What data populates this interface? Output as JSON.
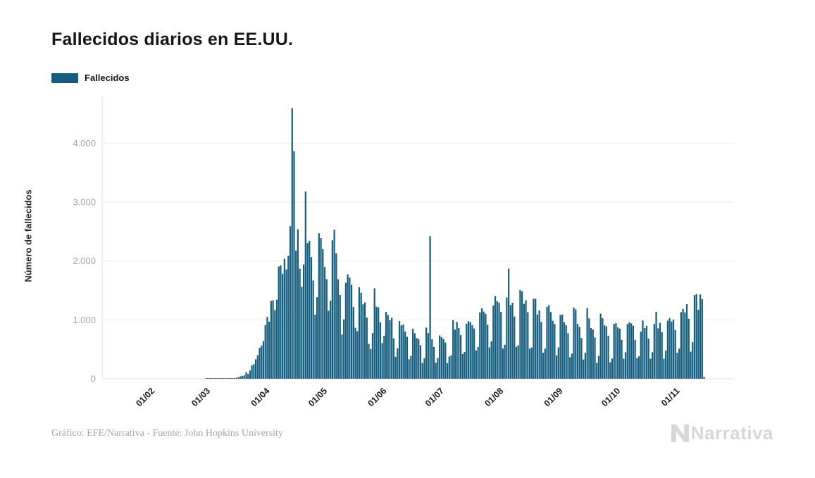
{
  "header": {
    "title": "Fallecidos diarios en EE.UU."
  },
  "legend": {
    "items": [
      {
        "label": "Fallecidos",
        "color": "#135e7e"
      }
    ]
  },
  "footer": {
    "credit": "Gráfico: EFE/Narrativa - Fuente: John Hopkins University"
  },
  "branding": {
    "logo_text": "Narrativa"
  },
  "colors": {
    "bar": "#135e7e",
    "grid": "#ededed",
    "axis_line": "#e2e2e2",
    "y_tick_text": "#a6a6a6",
    "x_tick_text": "#1a1a1a"
  },
  "chart_data": {
    "type": "bar",
    "title": "Fallecidos diarios en EE.UU.",
    "series_name": "Fallecidos",
    "xlabel": "",
    "ylabel": "Número de fallecidos",
    "x_unit": "day",
    "x_start_date": "22/01/2020",
    "x_tick_labels": [
      "01/02",
      "01/03",
      "01/04",
      "01/05",
      "01/06",
      "01/07",
      "01/08",
      "01/09",
      "01/10",
      "01/11"
    ],
    "x_tick_day_offsets": [
      10,
      39,
      70,
      100,
      131,
      161,
      192,
      223,
      253,
      284
    ],
    "y_ticks": [
      0,
      1000,
      2000,
      3000,
      4000
    ],
    "y_tick_labels": [
      "0",
      "1.000",
      "2.000",
      "3.000",
      "4.000"
    ],
    "ylim": [
      0,
      4780
    ],
    "grid": true,
    "legend_position": "top-left",
    "bar_color": "#135e7e",
    "values": [
      0,
      0,
      0,
      0,
      0,
      0,
      0,
      0,
      0,
      0,
      0,
      0,
      0,
      0,
      0,
      0,
      0,
      0,
      0,
      0,
      0,
      0,
      0,
      0,
      0,
      0,
      0,
      0,
      0,
      0,
      0,
      0,
      0,
      0,
      0,
      0,
      0,
      0,
      1,
      1,
      4,
      3,
      3,
      5,
      2,
      5,
      4,
      4,
      6,
      4,
      7,
      8,
      11,
      11,
      18,
      23,
      41,
      49,
      57,
      111,
      80,
      140,
      225,
      247,
      330,
      400,
      525,
      560,
      640,
      912,
      1049,
      968,
      1321,
      1331,
      1165,
      1342,
      1906,
      1922,
      1783,
      2035,
      1857,
      2087,
      2589,
      4591,
      3863,
      2174,
      2538,
      1867,
      1561,
      1940,
      3179,
      2303,
      2341,
      2065,
      1668,
      1087,
      1384,
      2470,
      2390,
      2201,
      1897,
      1691,
      1154,
      1324,
      2350,
      2528,
      2129,
      1687,
      1422,
      750,
      1008,
      1630,
      1772,
      1715,
      1595,
      1218,
      865,
      808,
      1552,
      1461,
      1263,
      1294,
      1036,
      592,
      505,
      774,
      1535,
      1223,
      1212,
      960,
      605,
      730,
      1134,
      1083,
      995,
      1036,
      685,
      373,
      517,
      978,
      906,
      919,
      802,
      711,
      330,
      389,
      849,
      773,
      690,
      673,
      570,
      267,
      348,
      868,
      775,
      2420,
      670,
      538,
      271,
      353,
      735,
      706,
      675,
      614,
      263,
      376,
      397,
      993,
      834,
      964,
      860,
      740,
      420,
      454,
      935,
      976,
      963,
      908,
      853,
      480,
      539,
      1126,
      1195,
      1140,
      1101,
      916,
      531,
      636,
      1244,
      1403,
      1318,
      1290,
      1134,
      515,
      576,
      1380,
      1870,
      1250,
      1290,
      1055,
      541,
      570,
      1504,
      1486,
      1272,
      1330,
      1130,
      510,
      530,
      1358,
      1356,
      1090,
      1160,
      965,
      440,
      512,
      1222,
      1250,
      1132,
      984,
      930,
      395,
      532,
      1083,
      1090,
      960,
      907,
      772,
      363,
      426,
      1208,
      1177,
      930,
      880,
      690,
      326,
      440,
      1197,
      1024,
      860,
      836,
      700,
      268,
      388,
      1105,
      1027,
      906,
      890,
      730,
      280,
      344,
      930,
      942,
      870,
      850,
      660,
      340,
      450,
      930,
      960,
      940,
      900,
      660,
      350,
      380,
      800,
      988,
      860,
      900,
      680,
      340,
      450,
      930,
      1135,
      856,
      950,
      790,
      340,
      477,
      985,
      1030,
      971,
      1004,
      826,
      440,
      510,
      1130,
      1185,
      1125,
      1266,
      1019,
      459,
      620,
      1420,
      1437,
      1170,
      1431,
      1352,
      30
    ]
  }
}
